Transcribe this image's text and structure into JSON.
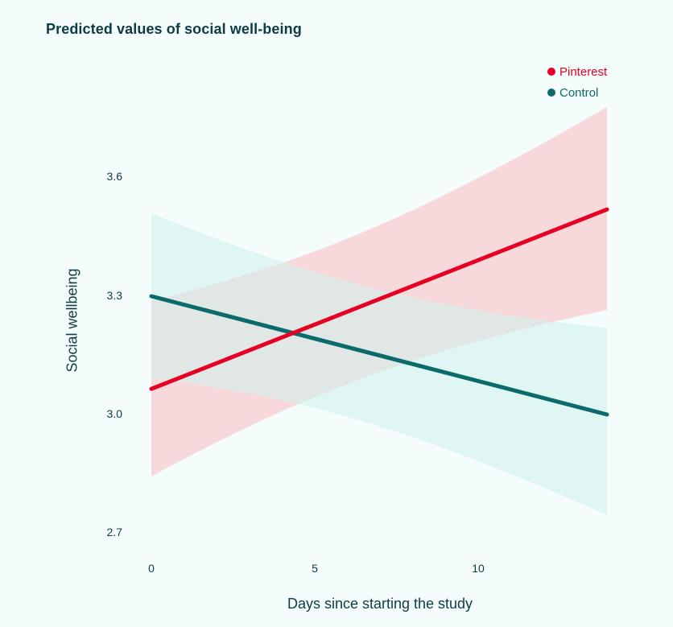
{
  "title": "Predicted values of social well-being",
  "legend": [
    {
      "label": "Pinterest",
      "color": "#e60023"
    },
    {
      "label": "Control",
      "color": "#0a6b6a"
    }
  ],
  "axes": {
    "xlabel": "Days since starting the study",
    "ylabel": "Social wellbeing",
    "xticks": [
      "0",
      "5",
      "10"
    ],
    "yticks": [
      "3.6",
      "3.3",
      "3.0",
      "2.7"
    ]
  },
  "colors": {
    "background": "#f5fcfc",
    "pinterest_line": "#e60023",
    "pinterest_band": "#f8d9db",
    "control_line": "#0a6b6a",
    "control_band": "#dff6f4",
    "overlap_band": "#e1e7e4",
    "text": "#0d3b45"
  },
  "chart_data": {
    "type": "line",
    "title": "Predicted values of social well-being",
    "xlabel": "Days since starting the study",
    "ylabel": "Social wellbeing",
    "x_range": [
      0,
      14
    ],
    "ylim": [
      2.7,
      3.6
    ],
    "xticks": [
      0,
      5,
      10
    ],
    "yticks": [
      2.7,
      3.0,
      3.3,
      3.6
    ],
    "grid": false,
    "legend_position": "top-right",
    "series": [
      {
        "name": "Pinterest",
        "color": "#e60023",
        "x": [
          0,
          14
        ],
        "fit": [
          3.065,
          3.52
        ],
        "ci_lower": [
          2.843,
          3.265
        ],
        "ci_upper": [
          3.288,
          3.78
        ]
      },
      {
        "name": "Control",
        "color": "#0a6b6a",
        "x": [
          0,
          14
        ],
        "fit": [
          3.3,
          3.0
        ],
        "ci_lower": [
          3.092,
          2.745
        ],
        "ci_upper": [
          3.51,
          3.22
        ]
      }
    ]
  }
}
